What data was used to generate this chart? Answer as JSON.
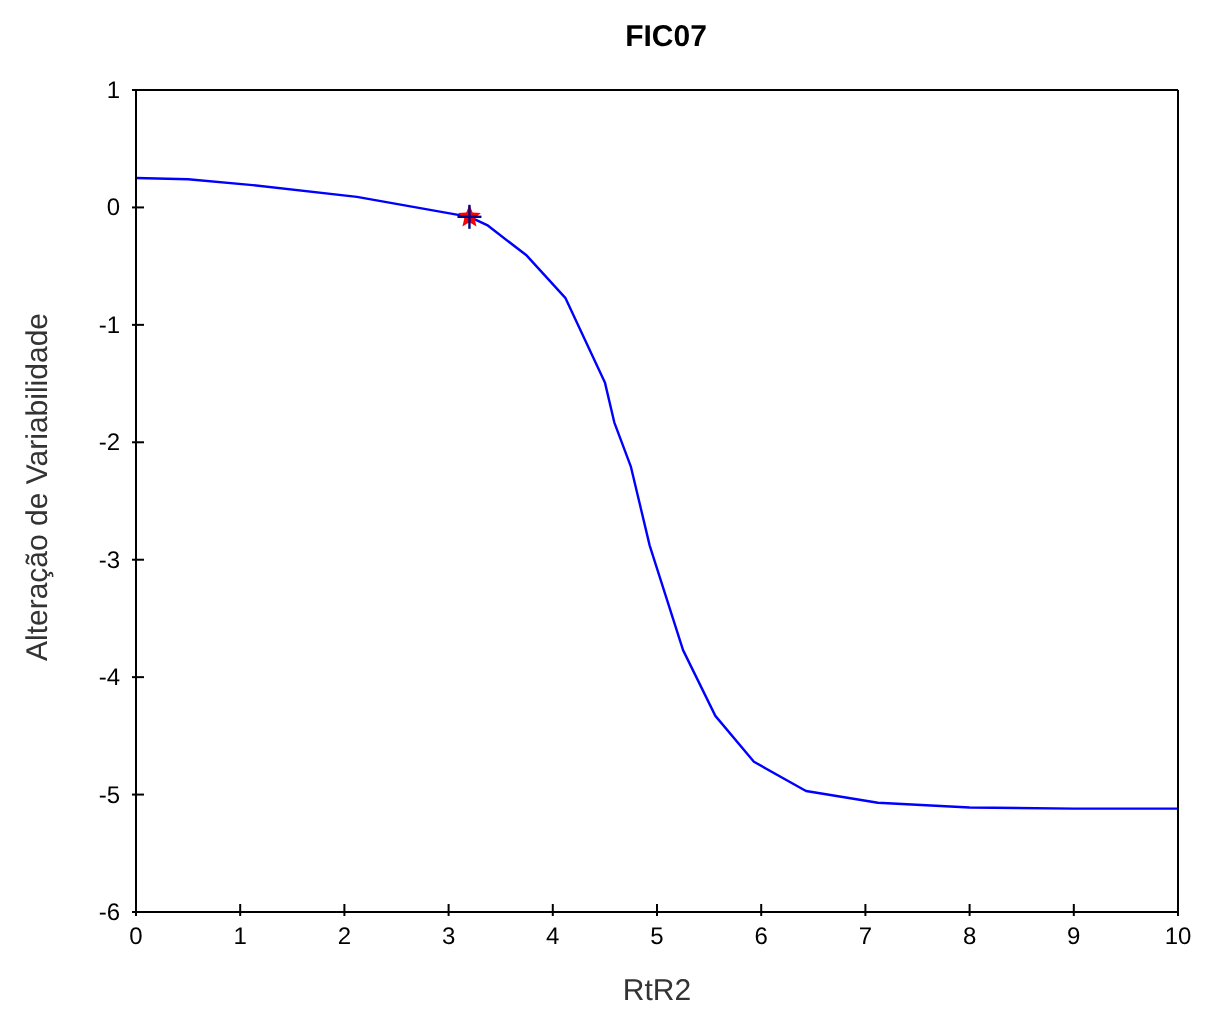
{
  "chart_data": {
    "type": "line",
    "title": "FIC07",
    "xlabel": "RtR2",
    "ylabel": "Alteração de Variabilidade",
    "xlim": [
      0,
      10
    ],
    "ylim": [
      -6,
      1
    ],
    "xticks": [
      0,
      1,
      2,
      3,
      4,
      5,
      6,
      7,
      8,
      9,
      10
    ],
    "yticks": [
      -6,
      -5,
      -4,
      -3,
      -2,
      -1,
      0,
      1
    ],
    "grid": false,
    "legend": false,
    "series": [
      {
        "color": "#0000ff",
        "marker": "none",
        "x": [
          0,
          0.5,
          1.12,
          2.12,
          3.2,
          3.37,
          3.75,
          4.12,
          4.5,
          4.59,
          4.75,
          4.93,
          5.25,
          5.56,
          5.93,
          6.43,
          7.12,
          8,
          9,
          10
        ],
        "values": [
          0.25,
          0.24,
          0.19,
          0.09,
          -0.08,
          -0.15,
          -0.41,
          -0.77,
          -1.49,
          -1.83,
          -2.21,
          -2.88,
          -3.77,
          -4.33,
          -4.72,
          -4.97,
          -5.07,
          -5.11,
          -5.12,
          -5.12
        ]
      },
      {
        "type": "scatter",
        "color": "#ff0000",
        "marker": "star",
        "x": [
          3.2
        ],
        "values": [
          -0.08
        ]
      },
      {
        "type": "scatter",
        "color": "#00008b",
        "marker": "cross",
        "x": [
          3.2
        ],
        "values": [
          -0.08
        ]
      }
    ]
  }
}
